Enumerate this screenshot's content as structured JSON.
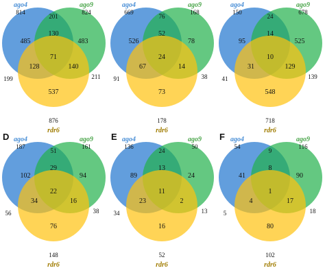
{
  "colors": {
    "ago4": "#2d7dd2",
    "ago9": "#22b14c",
    "rdr6": "#ffc20e",
    "ago4_label": "#4a8fd6",
    "ago9_label": "#4ca64c",
    "rdr6_label": "#a07c00"
  },
  "labels": {
    "ago4": "ago4",
    "ago9": "ago9",
    "rdr6": "rdr6"
  },
  "panels": [
    {
      "letter": "",
      "totals": {
        "ago4": "814",
        "ago9": "824",
        "rdr6": "876"
      },
      "outside": {
        "ago4_ago9": "201",
        "ago4_rdr6": "199",
        "ago9_rdr6": "211"
      },
      "regions": {
        "a_only": "485",
        "b_only": "483",
        "c_only": "537",
        "ab": "130",
        "ac": "128",
        "bc": "140",
        "abc": "71"
      }
    },
    {
      "letter": "",
      "totals": {
        "ago4": "669",
        "ago9": "168",
        "rdr6": "178"
      },
      "outside": {
        "ago4_ago9": "76",
        "ago4_rdr6": "91",
        "ago9_rdr6": "38"
      },
      "regions": {
        "a_only": "526",
        "b_only": "78",
        "c_only": "73",
        "ab": "52",
        "ac": "67",
        "bc": "14",
        "abc": "24"
      }
    },
    {
      "letter": "",
      "totals": {
        "ago4": "150",
        "ago9": "678",
        "rdr6": "718"
      },
      "outside": {
        "ago4_ago9": "24",
        "ago4_rdr6": "41",
        "ago9_rdr6": "139"
      },
      "regions": {
        "a_only": "95",
        "b_only": "525",
        "c_only": "548",
        "ab": "14",
        "ac": "31",
        "bc": "129",
        "abc": "10"
      }
    },
    {
      "letter": "D",
      "totals": {
        "ago4": "187",
        "ago9": "161",
        "rdr6": "148"
      },
      "outside": {
        "ago4_ago9": "51",
        "ago4_rdr6": "56",
        "ago9_rdr6": "38"
      },
      "regions": {
        "a_only": "102",
        "b_only": "94",
        "c_only": "76",
        "ab": "29",
        "ac": "34",
        "bc": "16",
        "abc": "22"
      }
    },
    {
      "letter": "E",
      "totals": {
        "ago4": "136",
        "ago9": "50",
        "rdr6": "52"
      },
      "outside": {
        "ago4_ago9": "24",
        "ago4_rdr6": "34",
        "ago9_rdr6": "13"
      },
      "regions": {
        "a_only": "89",
        "b_only": "24",
        "c_only": "16",
        "ab": "13",
        "ac": "23",
        "bc": "2",
        "abc": "11"
      }
    },
    {
      "letter": "F",
      "totals": {
        "ago4": "54",
        "ago9": "116",
        "rdr6": "102"
      },
      "outside": {
        "ago4_ago9": "9",
        "ago4_rdr6": "5",
        "ago9_rdr6": "18"
      },
      "regions": {
        "a_only": "41",
        "b_only": "90",
        "c_only": "80",
        "ab": "8",
        "ac": "4",
        "bc": "17",
        "abc": "1"
      }
    }
  ]
}
